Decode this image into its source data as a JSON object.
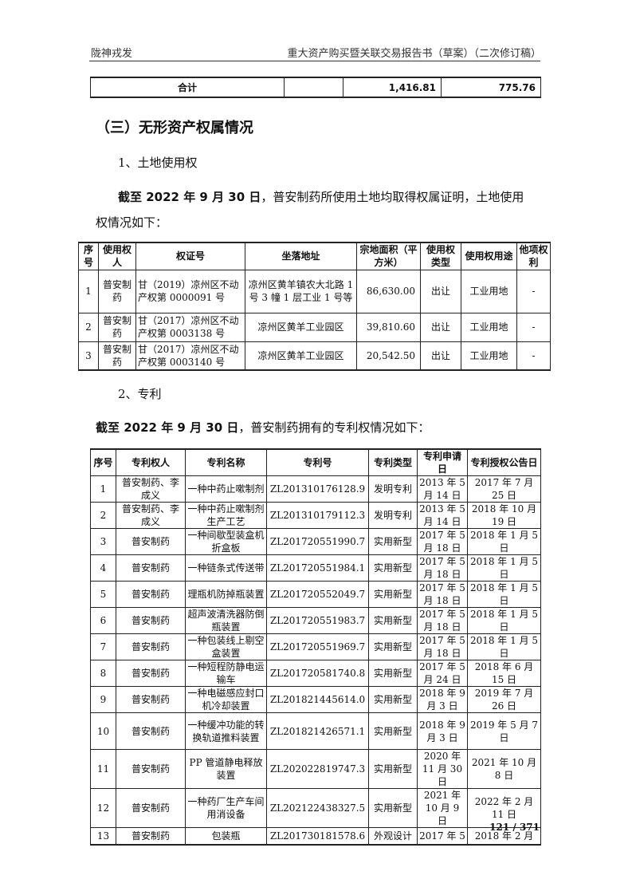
{
  "header": {
    "left": "陇神戎发",
    "right": "重大资产购买暨关联交易报告书（草案）（二次修订稿）"
  },
  "total_row": {
    "label": "合计",
    "blank": "",
    "v1": "1,416.81",
    "v2": "775.76"
  },
  "section_title": "（三）无形资产权属情况",
  "land": {
    "heading": "1、土地使用权",
    "intro_bold": "截至 2022 年 9 月 30 日",
    "intro_rest": "，普安制药所使用土地均取得权属证明，土地使用",
    "intro_line2": "权情况如下：",
    "columns": [
      "序号",
      "使用权人",
      "权证号",
      "坐落地址",
      "宗地面积（平方米）",
      "使用权类型",
      "使用权用途",
      "他项权利"
    ],
    "rows": [
      [
        "1",
        "普安制药",
        "甘（2019）凉州区不动产权第 0000091 号",
        "凉州区黄羊镇农大北路 1 号 3 幢 1 层工业 1 号等",
        "86,630.00",
        "出让",
        "工业用地",
        "-"
      ],
      [
        "2",
        "普安制药",
        "甘（2017）凉州区不动产权第 0003138 号",
        "凉州区黄羊工业园区",
        "39,810.60",
        "出让",
        "工业用地",
        "-"
      ],
      [
        "3",
        "普安制药",
        "甘（2017）凉州区不动产权第 0003140 号",
        "凉州区黄羊工业园区",
        "20,542.50",
        "出让",
        "工业用地",
        "-"
      ]
    ]
  },
  "patent": {
    "heading": "2、专利",
    "intro_bold": "截至 2022 年 9 月 30 日",
    "intro_rest": "，普安制药拥有的专利权情况如下：",
    "columns": [
      "序号",
      "专利权人",
      "专利名称",
      "专利号",
      "专利类型",
      "专利申请日",
      "专利授权公告日"
    ],
    "rows": [
      [
        "1",
        "普安制药、李成义",
        "一种中药止嗽制剂",
        "ZL201310176128.9",
        "发明专利",
        "2013 年 5 月 14 日",
        "2017 年 7 月 25 日"
      ],
      [
        "2",
        "普安制药、李成义",
        "一种中药止嗽制剂生产工艺",
        "ZL201310179112.3",
        "发明专利",
        "2013 年 5 月 14 日",
        "2018 年 10 月 19 日"
      ],
      [
        "3",
        "普安制药",
        "一种间歇型装盒机折盒板",
        "ZL201720551990.7",
        "实用新型",
        "2017 年 5 月 18 日",
        "2018 年 1 月 5 日"
      ],
      [
        "4",
        "普安制药",
        "一种链条式传送带",
        "ZL201720551984.1",
        "实用新型",
        "2017 年 5 月 18 日",
        "2018 年 1 月 5 日"
      ],
      [
        "5",
        "普安制药",
        "理瓶机防掉瓶装置",
        "ZL201720552049.7",
        "实用新型",
        "2017 年 5 月 18 日",
        "2018 年 1 月 5 日"
      ],
      [
        "6",
        "普安制药",
        "超声波清洗器防倒瓶装置",
        "ZL201720551983.7",
        "实用新型",
        "2017 年 5 月 18 日",
        "2018 年 1 月 5 日"
      ],
      [
        "7",
        "普安制药",
        "一种包装线上剔空盒装置",
        "ZL201720551969.7",
        "实用新型",
        "2017 年 5 月 18 日",
        "2018 年 1 月 5 日"
      ],
      [
        "8",
        "普安制药",
        "一种短程防静电运输车",
        "ZL201720581740.8",
        "实用新型",
        "2017 年 5 月 24 日",
        "2018 年 6 月 15 日"
      ],
      [
        "9",
        "普安制药",
        "一种电磁感应封口机冷却装置",
        "ZL201821445614.0",
        "实用新型",
        "2018 年 9 月 3 日",
        "2019 年 7 月 26 日"
      ],
      [
        "10",
        "普安制药",
        "一种缓冲功能的转换轨道推料装置",
        "ZL201821426571.1",
        "实用新型",
        "2018 年 9 月 3 日",
        "2019 年 5 月 7 日"
      ],
      [
        "11",
        "普安制药",
        "PP 管道静电释放装置",
        "ZL202022819747.3",
        "实用新型",
        "2020 年 11 月 30 日",
        "2021 年 10 月 8 日"
      ],
      [
        "12",
        "普安制药",
        "一种药厂生产车间用消设备",
        "ZL202122438327.5",
        "实用新型",
        "2021 年 10 月 9 日",
        "2022 年 2 月 11 日"
      ],
      [
        "13",
        "普安制药",
        "包装瓶",
        "ZL201730181578.6",
        "外观设计",
        "2017 年 5",
        "2018 年 2 月"
      ]
    ]
  },
  "page_number": "121 / 371"
}
